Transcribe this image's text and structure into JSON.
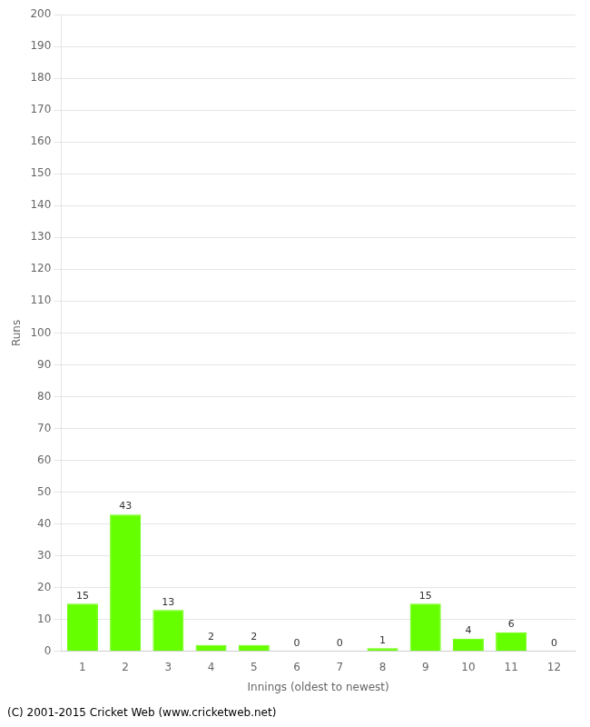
{
  "chart_data": {
    "type": "bar",
    "categories": [
      1,
      2,
      3,
      4,
      5,
      6,
      7,
      8,
      9,
      10,
      11,
      12
    ],
    "values": [
      15,
      43,
      13,
      2,
      2,
      0,
      0,
      1,
      15,
      4,
      6,
      0
    ],
    "color": "#66ff00",
    "xlabel": "Innings (oldest to newest)",
    "ylabel": "Runs",
    "ylim": [
      0,
      200
    ],
    "yticks": [
      0,
      10,
      20,
      30,
      40,
      50,
      60,
      70,
      80,
      90,
      100,
      110,
      120,
      130,
      140,
      150,
      160,
      170,
      180,
      190,
      200
    ],
    "grid": true,
    "data_labels": true,
    "annotations": [
      "(C) 2001-2015 Cricket Web (www.cricketweb.net)"
    ]
  }
}
